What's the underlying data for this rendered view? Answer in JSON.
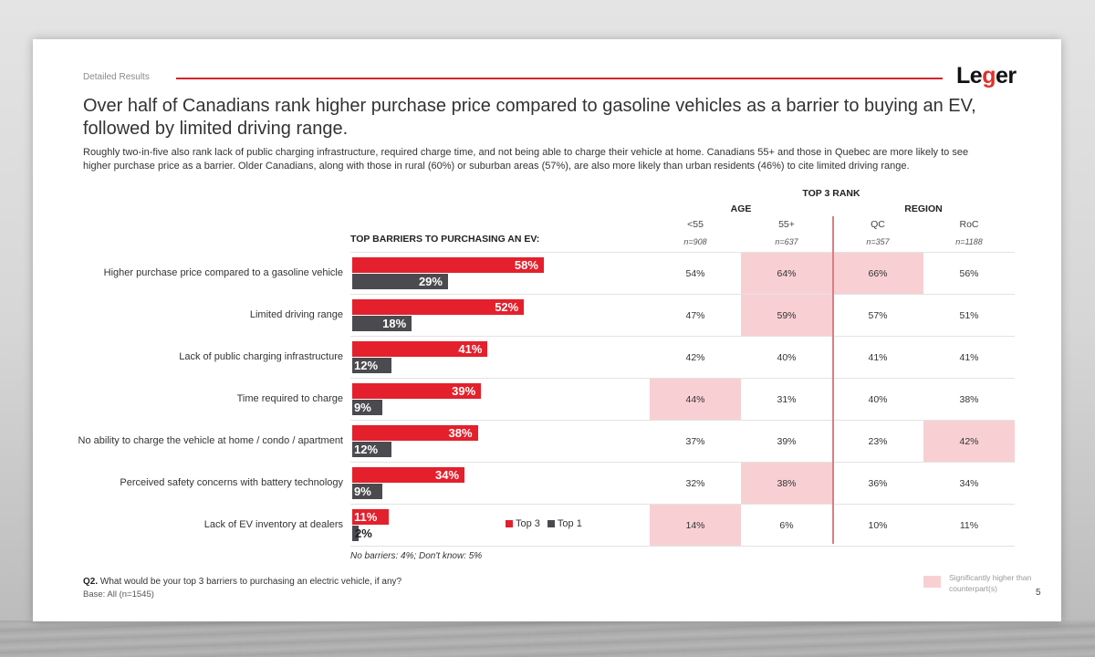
{
  "header": {
    "section_label": "Detailed Results",
    "logo": {
      "pre": "Le",
      "accent": "g",
      "post": "er"
    },
    "title": "Over half of Canadians rank higher purchase price compared to gasoline vehicles as a barrier to buying an EV, followed by limited driving range.",
    "subtitle": "Roughly two-in-five also rank lack of public charging infrastructure, required charge time, and not being able to charge their vehicle at home. Canadians 55+ and those in Quebec are more likely to see higher purchase price as a barrier. Older Canadians, along with those in rural (60%) or suburban areas (57%), are also more likely than urban residents (46%) to cite limited driving range."
  },
  "colors": {
    "top3": "#e3202c",
    "top1": "#4b4a4f",
    "highlight": "#f8d0d3",
    "accent_rule": "#d3232b"
  },
  "chart_data": {
    "type": "bar",
    "orientation": "horizontal",
    "title": "TOP BARRIERS TO PURCHASING AN EV:",
    "categories": [
      "Higher purchase price compared to a gasoline vehicle",
      "Limited driving range",
      "Lack of public charging infrastructure",
      "Time required to charge",
      "No ability to charge the vehicle at home / condo / apartment",
      "Perceived safety concerns with battery technology",
      "Lack of EV inventory at dealers"
    ],
    "series": [
      {
        "name": "Top 3",
        "values": [
          58,
          52,
          41,
          39,
          38,
          34,
          11
        ]
      },
      {
        "name": "Top 1",
        "values": [
          29,
          18,
          12,
          9,
          12,
          9,
          2
        ]
      }
    ],
    "value_format": "{v}%",
    "xlim": [
      0,
      100
    ],
    "legend": "bottom-right",
    "grid": false,
    "footnote": "No barriers: 4%; Don't know: 5%"
  },
  "table": {
    "super_header": "TOP 3 RANK",
    "groups": [
      "AGE",
      "REGION"
    ],
    "columns": [
      {
        "label": "<55",
        "n": "n=908"
      },
      {
        "label": "55+",
        "n": "n=637"
      },
      {
        "label": "QC",
        "n": "n=357"
      },
      {
        "label": "RoC",
        "n": "n=1188"
      }
    ],
    "rows": [
      {
        "values": [
          "54%",
          "64%",
          "66%",
          "56%"
        ],
        "highlight": [
          false,
          true,
          true,
          false
        ]
      },
      {
        "values": [
          "47%",
          "59%",
          "57%",
          "51%"
        ],
        "highlight": [
          false,
          true,
          false,
          false
        ]
      },
      {
        "values": [
          "42%",
          "40%",
          "41%",
          "41%"
        ],
        "highlight": [
          false,
          false,
          false,
          false
        ]
      },
      {
        "values": [
          "44%",
          "31%",
          "40%",
          "38%"
        ],
        "highlight": [
          true,
          false,
          false,
          false
        ]
      },
      {
        "values": [
          "37%",
          "39%",
          "23%",
          "42%"
        ],
        "highlight": [
          false,
          false,
          false,
          true
        ]
      },
      {
        "values": [
          "32%",
          "38%",
          "36%",
          "34%"
        ],
        "highlight": [
          false,
          true,
          false,
          false
        ]
      },
      {
        "values": [
          "14%",
          "6%",
          "10%",
          "11%"
        ],
        "highlight": [
          true,
          false,
          false,
          false
        ]
      }
    ]
  },
  "footer": {
    "question_id": "Q2.",
    "question": " What would be your top 3 barriers to purchasing an electric vehicle, if any?",
    "base": "Base: All (n=1545)",
    "sig_legend": "Significantly higher than counterpart(s)",
    "page_number": "5"
  }
}
